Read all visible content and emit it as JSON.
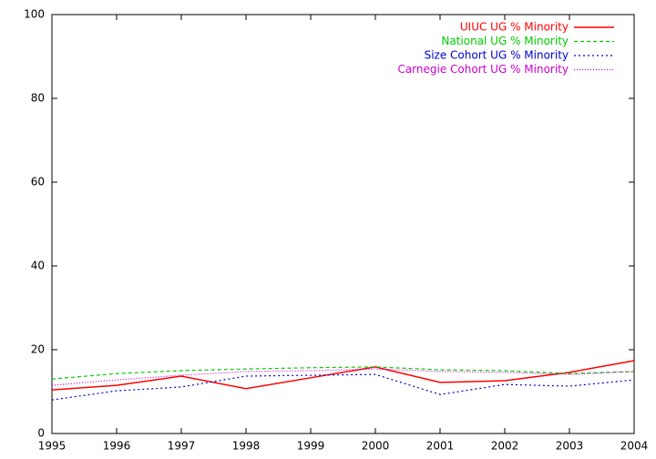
{
  "chart_data": {
    "type": "line",
    "x": [
      1995,
      1996,
      1997,
      1998,
      1999,
      2000,
      2001,
      2002,
      2003,
      2004
    ],
    "series": [
      {
        "name": "UIUC UG % Minority",
        "color": "#ff0000",
        "dash": "none",
        "values": [
          10.4,
          11.5,
          13.7,
          10.7,
          13.3,
          15.9,
          12.2,
          12.6,
          14.6,
          17.4
        ]
      },
      {
        "name": "National UG % Minority",
        "color": "#00cc00",
        "dash": "4 3",
        "values": [
          13.0,
          14.3,
          15.0,
          15.4,
          15.7,
          15.9,
          15.2,
          15.0,
          14.3,
          14.8
        ]
      },
      {
        "name": "Size Cohort UG % Minority",
        "color": "#0000cc",
        "dash": "2 3",
        "values": [
          8.0,
          10.2,
          11.1,
          13.7,
          13.9,
          14.1,
          9.3,
          11.7,
          11.3,
          12.8
        ]
      },
      {
        "name": "Carnegie Cohort UG % Minority",
        "color": "#cc00cc",
        "dash": "1 2",
        "values": [
          11.5,
          12.8,
          13.9,
          14.8,
          15.0,
          15.4,
          14.8,
          14.6,
          14.1,
          14.8
        ]
      }
    ],
    "xlim": [
      1995,
      2004
    ],
    "xticks": [
      1995,
      1996,
      1997,
      1998,
      1999,
      2000,
      2001,
      2002,
      2003,
      2004
    ],
    "ylim": [
      0,
      100
    ],
    "yticks": [
      0,
      20,
      40,
      60,
      80,
      100
    ],
    "legend": "top-right"
  }
}
